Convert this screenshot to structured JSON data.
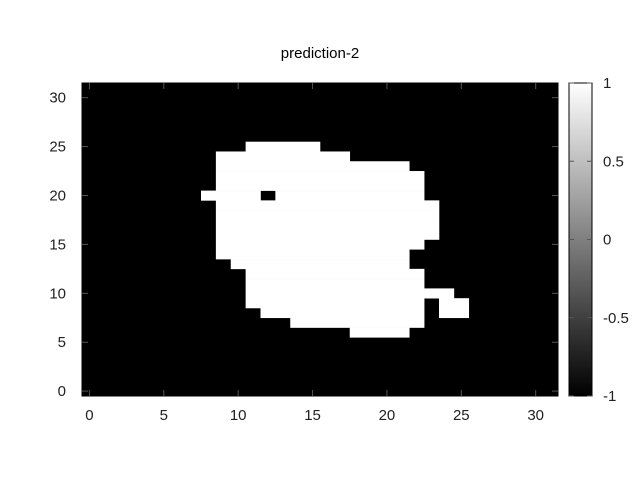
{
  "chart_data": {
    "type": "heatmap",
    "title": "prediction-2",
    "xlabel": "",
    "ylabel": "",
    "xlim": [
      -0.5,
      31.5
    ],
    "ylim": [
      -0.5,
      31.5
    ],
    "x_ticks": [
      0,
      5,
      10,
      15,
      20,
      25,
      30
    ],
    "y_ticks": [
      0,
      5,
      10,
      15,
      20,
      25,
      30
    ],
    "colorbar": {
      "min": -1,
      "max": 1,
      "ticks": [
        "1",
        "0.5",
        "0",
        "-0.5",
        "-1"
      ],
      "colormap": "gray"
    },
    "background_value": -1,
    "foreground_value": 1,
    "white_runs_by_row": [
      {
        "y": 6,
        "runs": [
          [
            18,
            21
          ]
        ]
      },
      {
        "y": 7,
        "runs": [
          [
            14,
            22
          ]
        ]
      },
      {
        "y": 8,
        "runs": [
          [
            12,
            22
          ],
          [
            24,
            25
          ]
        ]
      },
      {
        "y": 9,
        "runs": [
          [
            11,
            22
          ],
          [
            24,
            25
          ]
        ]
      },
      {
        "y": 10,
        "runs": [
          [
            11,
            24
          ]
        ]
      },
      {
        "y": 11,
        "runs": [
          [
            11,
            22
          ]
        ]
      },
      {
        "y": 12,
        "runs": [
          [
            11,
            22
          ]
        ]
      },
      {
        "y": 13,
        "runs": [
          [
            10,
            21
          ]
        ]
      },
      {
        "y": 14,
        "runs": [
          [
            9,
            21
          ]
        ]
      },
      {
        "y": 15,
        "runs": [
          [
            9,
            22
          ]
        ]
      },
      {
        "y": 16,
        "runs": [
          [
            9,
            23
          ]
        ]
      },
      {
        "y": 17,
        "runs": [
          [
            9,
            23
          ]
        ]
      },
      {
        "y": 18,
        "runs": [
          [
            9,
            23
          ]
        ]
      },
      {
        "y": 19,
        "runs": [
          [
            9,
            23
          ]
        ]
      },
      {
        "y": 20,
        "runs": [
          [
            8,
            11
          ],
          [
            13,
            22
          ]
        ]
      },
      {
        "y": 21,
        "runs": [
          [
            9,
            22
          ]
        ]
      },
      {
        "y": 22,
        "runs": [
          [
            9,
            22
          ]
        ]
      },
      {
        "y": 23,
        "runs": [
          [
            9,
            21
          ]
        ]
      },
      {
        "y": 24,
        "runs": [
          [
            9,
            17
          ]
        ]
      },
      {
        "y": 25,
        "runs": [
          [
            11,
            15
          ]
        ]
      }
    ]
  }
}
